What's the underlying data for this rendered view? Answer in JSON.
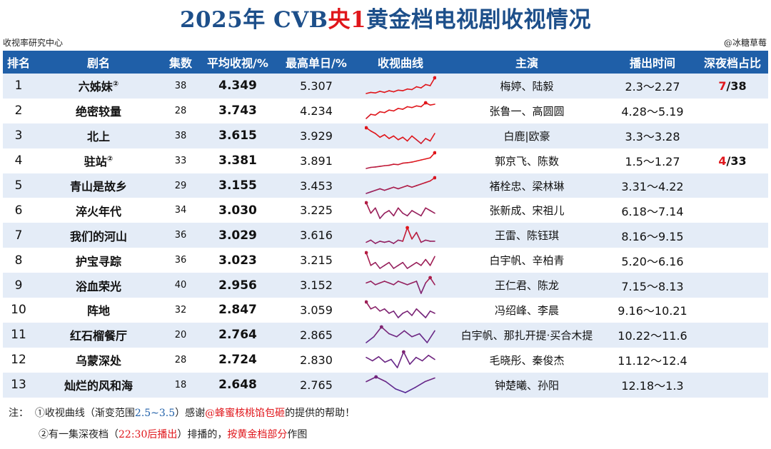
{
  "title": {
    "p1": "2025年 CVB",
    "p2": "央1",
    "p3": "黄金档电视剧收视情况"
  },
  "source": "收视率研究中心",
  "author": "@冰糖草莓",
  "columns": [
    "排名",
    "剧名",
    "集数",
    "平均收视/%",
    "最高单日/%",
    "收视曲线",
    "主演",
    "播出时间",
    "深夜档占比"
  ],
  "colors": {
    "header": "#1f5fa8",
    "stripe": "#e4ecf7",
    "accent_red": "#e0161b",
    "curve_high": "#e0161b",
    "curve_low": "#4b2aa0"
  },
  "chart_data": {
    "type": "table",
    "rows": [
      {
        "rank": "1",
        "name": "六姊妹",
        "mark": "②",
        "episodes": "38",
        "avg": "4.349",
        "peak": "5.307",
        "actors": "梅婷、陆毅",
        "air": "2.3～2.27",
        "late_num": "7",
        "late_den": "/38",
        "curve": [
          3.9,
          4.0,
          3.95,
          4.1,
          4.0,
          4.15,
          4.05,
          4.2,
          4.15,
          4.3,
          4.25,
          4.5,
          4.4,
          4.7,
          4.6,
          5.3
        ]
      },
      {
        "rank": "2",
        "name": "绝密较量",
        "mark": "",
        "episodes": "28",
        "avg": "3.743",
        "peak": "4.234",
        "actors": "张鲁一、高圆圆",
        "air": "4.28～5.19",
        "late_num": "",
        "late_den": "",
        "curve": [
          3.3,
          3.55,
          3.5,
          3.7,
          3.65,
          3.8,
          3.75,
          3.9,
          3.85,
          4.0,
          3.95,
          4.05,
          4.0,
          4.234,
          4.1,
          4.15
        ]
      },
      {
        "rank": "3",
        "name": "北上",
        "mark": "",
        "episodes": "38",
        "avg": "3.615",
        "peak": "3.929",
        "actors": "白鹿|欧豪",
        "air": "3.3～3.28",
        "late_num": "",
        "late_den": "",
        "curve": [
          3.929,
          3.8,
          3.7,
          3.55,
          3.65,
          3.5,
          3.6,
          3.45,
          3.55,
          3.4,
          3.6,
          3.45,
          3.3,
          3.5,
          3.4,
          3.7
        ]
      },
      {
        "rank": "4",
        "name": "驻站",
        "mark": "②",
        "episodes": "33",
        "avg": "3.381",
        "peak": "3.891",
        "actors": "郭京飞、陈数",
        "air": "1.5～1.27",
        "late_num": "4",
        "late_den": "/33",
        "curve": [
          3.15,
          3.2,
          3.22,
          3.25,
          3.28,
          3.3,
          3.35,
          3.33,
          3.4,
          3.42,
          3.45,
          3.5,
          3.55,
          3.6,
          3.65,
          3.891
        ]
      },
      {
        "rank": "5",
        "name": "青山是故乡",
        "mark": "",
        "episodes": "29",
        "avg": "3.155",
        "peak": "3.453",
        "actors": "褚栓忠、梁林琳",
        "air": "3.31～4.22",
        "late_num": "",
        "late_den": "",
        "curve": [
          2.95,
          3.0,
          3.05,
          3.1,
          3.05,
          3.1,
          3.15,
          3.1,
          3.15,
          3.2,
          3.15,
          3.2,
          3.25,
          3.3,
          3.35,
          3.453
        ]
      },
      {
        "rank": "6",
        "name": "淬火年代",
        "mark": "",
        "episodes": "34",
        "avg": "3.030",
        "peak": "3.225",
        "actors": "张新成、宋祖儿",
        "air": "6.18～7.14",
        "late_num": "",
        "late_den": "",
        "curve": [
          3.2,
          3.0,
          3.1,
          2.9,
          3.0,
          3.05,
          2.95,
          3.1,
          3.0,
          2.95,
          3.05,
          3.0,
          2.95,
          3.1,
          3.05,
          3.0
        ]
      },
      {
        "rank": "7",
        "name": "我们的河山",
        "mark": "",
        "episodes": "36",
        "avg": "3.029",
        "peak": "3.616",
        "actors": "王雷、陈钰琪",
        "air": "8.16～9.15",
        "late_num": "",
        "late_den": "",
        "curve": [
          2.95,
          3.05,
          2.9,
          3.0,
          2.95,
          3.0,
          2.9,
          3.05,
          3.0,
          3.616,
          3.1,
          3.4,
          2.95,
          3.05,
          3.0,
          3.0
        ]
      },
      {
        "rank": "8",
        "name": "护宝寻踪",
        "mark": "",
        "episodes": "36",
        "avg": "3.023",
        "peak": "3.215",
        "actors": "白宇帆、辛柏青",
        "air": "5.20～6.16",
        "late_num": "",
        "late_den": "",
        "curve": [
          3.215,
          3.0,
          3.05,
          2.95,
          3.0,
          3.05,
          2.95,
          3.0,
          3.05,
          2.95,
          3.0,
          3.05,
          3.0,
          3.1,
          3.0,
          3.15
        ]
      },
      {
        "rank": "9",
        "name": "浴血荣光",
        "mark": "",
        "episodes": "40",
        "avg": "2.956",
        "peak": "3.152",
        "actors": "王仁君、陈龙",
        "air": "7.15～8.13",
        "late_num": "",
        "late_den": "",
        "curve": [
          3.0,
          3.05,
          2.95,
          3.0,
          3.05,
          3.0,
          2.95,
          3.05,
          3.0,
          2.95,
          3.0,
          3.05,
          2.7,
          3.0,
          3.152,
          2.95
        ]
      },
      {
        "rank": "10",
        "name": "阵地",
        "mark": "",
        "episodes": "32",
        "avg": "2.847",
        "peak": "3.059",
        "actors": "冯绍峰、李晨",
        "air": "9.16～10.21",
        "late_num": "",
        "late_den": "",
        "curve": [
          3.059,
          2.9,
          2.95,
          2.85,
          2.9,
          2.8,
          2.85,
          2.7,
          2.8,
          2.85,
          2.75,
          2.9,
          2.8,
          2.7,
          2.85,
          2.8
        ]
      },
      {
        "rank": "11",
        "name": "红石榴餐厅",
        "mark": "",
        "episodes": "20",
        "avg": "2.764",
        "peak": "2.865",
        "actors": "白宇帆、那扎开提·买合木提",
        "air": "10.22～11.6",
        "late_num": "",
        "late_den": "",
        "curve": [
          2.6,
          2.7,
          2.865,
          2.75,
          2.7,
          2.8,
          2.7,
          2.75,
          2.6,
          2.8
        ]
      },
      {
        "rank": "12",
        "name": "乌蒙深处",
        "mark": "",
        "episodes": "28",
        "avg": "2.724",
        "peak": "2.830",
        "actors": "毛晓彤、秦俊杰",
        "air": "11.12～12.4",
        "late_num": "",
        "late_den": "",
        "curve": [
          2.75,
          2.7,
          2.76,
          2.68,
          2.72,
          2.6,
          2.83,
          2.65,
          2.75,
          2.7,
          2.78,
          2.72
        ]
      },
      {
        "rank": "13",
        "name": "灿烂的风和海",
        "mark": "",
        "episodes": "18",
        "avg": "2.648",
        "peak": "2.765",
        "actors": "钟楚曦、孙阳",
        "air": "12.18～1.3",
        "late_num": "",
        "late_den": "",
        "curve": [
          2.7,
          2.765,
          2.7,
          2.6,
          2.55,
          2.62,
          2.7,
          2.75
        ]
      }
    ]
  },
  "notes": {
    "label": "注：",
    "n1_a": "①收视曲线（渐变范围",
    "n1_range": "2.5~3.5",
    "n1_b": "）感谢",
    "n1_thanks": "@蜂蜜核桃馅包砸",
    "n1_c": "的提供的帮助！",
    "n2_a": "②有一集深夜档（",
    "n2_time": "22:30后播出",
    "n2_b": "）排播的，",
    "n2_c": "按黄金档部分",
    "n2_d": "作图"
  }
}
